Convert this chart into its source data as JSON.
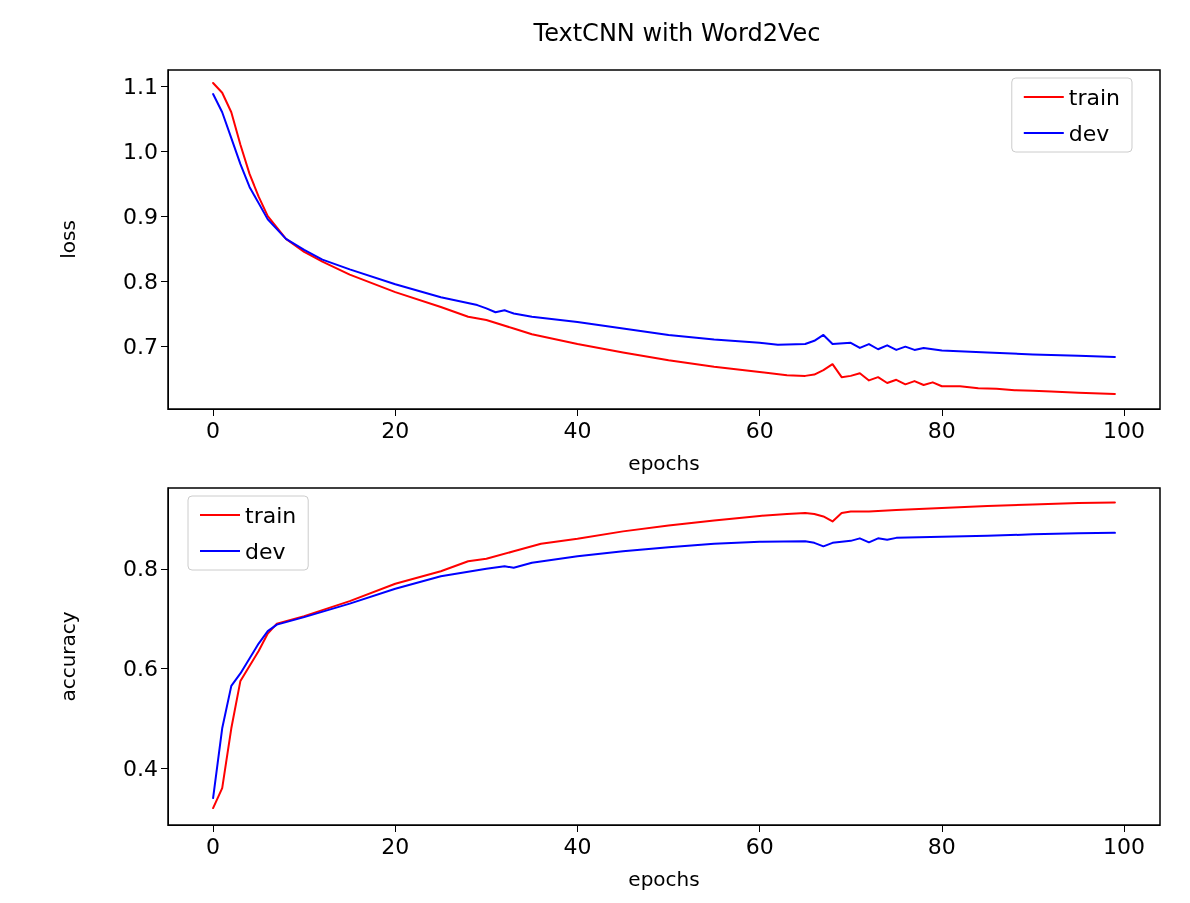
{
  "chart_data": [
    {
      "type": "line",
      "title": "TextCNN with Word2Vec",
      "xlabel": "epochs",
      "ylabel": "loss",
      "xlim": [
        -4.95,
        103.95
      ],
      "xticks": [
        0,
        20,
        40,
        60,
        80,
        100
      ],
      "ylim": [
        0.603,
        1.125
      ],
      "yticks": [
        0.7,
        0.8,
        0.9,
        {
          "value": 1,
          "label": "1.0"
        },
        1.1
      ],
      "grid": false,
      "legend": "top right",
      "marker": "none",
      "line_style": "solid",
      "series": [
        {
          "name": "train",
          "color": "#ff0000",
          "x": [
            0,
            1,
            2,
            3,
            4,
            5,
            6,
            8,
            10,
            12,
            15,
            20,
            25,
            28,
            30,
            33,
            35,
            40,
            45,
            50,
            55,
            60,
            63,
            65,
            66,
            67,
            68,
            69,
            70,
            71,
            72,
            73,
            74,
            75,
            76,
            77,
            78,
            79,
            80,
            82,
            84,
            86,
            88,
            90,
            92,
            95,
            99
          ],
          "values": [
            1.105,
            1.09,
            1.06,
            1.01,
            0.965,
            0.93,
            0.9,
            0.865,
            0.845,
            0.83,
            0.81,
            0.783,
            0.76,
            0.745,
            0.74,
            0.727,
            0.718,
            0.703,
            0.69,
            0.678,
            0.668,
            0.66,
            0.655,
            0.654,
            0.656,
            0.663,
            0.672,
            0.652,
            0.654,
            0.658,
            0.647,
            0.652,
            0.643,
            0.648,
            0.641,
            0.646,
            0.64,
            0.644,
            0.638,
            0.638,
            0.635,
            0.634,
            0.632,
            0.631,
            0.63,
            0.628,
            0.626
          ]
        },
        {
          "name": "dev",
          "color": "#0000ff",
          "x": [
            0,
            1,
            2,
            3,
            4,
            5,
            6,
            8,
            10,
            12,
            15,
            20,
            25,
            29,
            30,
            31,
            32,
            33,
            35,
            40,
            45,
            50,
            55,
            60,
            62,
            65,
            66,
            67,
            68,
            70,
            71,
            72,
            73,
            74,
            75,
            76,
            77,
            78,
            80,
            85,
            90,
            95,
            99
          ],
          "values": [
            1.088,
            1.06,
            1.02,
            0.98,
            0.945,
            0.92,
            0.895,
            0.865,
            0.848,
            0.833,
            0.818,
            0.795,
            0.775,
            0.763,
            0.758,
            0.752,
            0.755,
            0.75,
            0.745,
            0.737,
            0.727,
            0.717,
            0.71,
            0.705,
            0.702,
            0.703,
            0.708,
            0.717,
            0.703,
            0.705,
            0.697,
            0.703,
            0.695,
            0.701,
            0.694,
            0.699,
            0.694,
            0.697,
            0.693,
            0.69,
            0.687,
            0.685,
            0.683
          ]
        }
      ]
    },
    {
      "type": "line",
      "xlabel": "epochs",
      "ylabel": "accuracy",
      "xlim": [
        -4.95,
        103.95
      ],
      "xticks": [
        0,
        20,
        40,
        60,
        80,
        100
      ],
      "ylim": [
        0.286,
        0.962
      ],
      "yticks": [
        0.4,
        0.6,
        0.8
      ],
      "grid": false,
      "legend": "top left",
      "marker": "none",
      "line_style": "solid",
      "series": [
        {
          "name": "train",
          "color": "#ff0000",
          "x": [
            0,
            1,
            2,
            3,
            4,
            5,
            6,
            7,
            8,
            10,
            15,
            20,
            25,
            28,
            30,
            33,
            36,
            40,
            45,
            50,
            55,
            60,
            63,
            65,
            66,
            67,
            68,
            69,
            70,
            72,
            75,
            80,
            85,
            90,
            95,
            99
          ],
          "values": [
            0.32,
            0.36,
            0.48,
            0.575,
            0.605,
            0.635,
            0.67,
            0.69,
            0.695,
            0.705,
            0.735,
            0.77,
            0.795,
            0.815,
            0.82,
            0.835,
            0.85,
            0.86,
            0.875,
            0.887,
            0.897,
            0.906,
            0.91,
            0.912,
            0.91,
            0.905,
            0.895,
            0.912,
            0.915,
            0.915,
            0.918,
            0.922,
            0.926,
            0.929,
            0.932,
            0.933
          ]
        },
        {
          "name": "dev",
          "color": "#0000ff",
          "x": [
            0,
            1,
            2,
            3,
            4,
            5,
            6,
            7,
            8,
            10,
            15,
            20,
            25,
            30,
            32,
            33,
            35,
            40,
            45,
            50,
            55,
            60,
            65,
            66,
            67,
            68,
            70,
            71,
            72,
            73,
            74,
            75,
            80,
            85,
            90,
            95,
            99
          ],
          "values": [
            0.34,
            0.48,
            0.565,
            0.59,
            0.62,
            0.65,
            0.675,
            0.688,
            0.693,
            0.703,
            0.73,
            0.76,
            0.785,
            0.8,
            0.805,
            0.802,
            0.812,
            0.825,
            0.835,
            0.843,
            0.85,
            0.854,
            0.855,
            0.852,
            0.845,
            0.852,
            0.856,
            0.861,
            0.853,
            0.861,
            0.858,
            0.862,
            0.864,
            0.866,
            0.869,
            0.871,
            0.872
          ]
        }
      ]
    }
  ]
}
